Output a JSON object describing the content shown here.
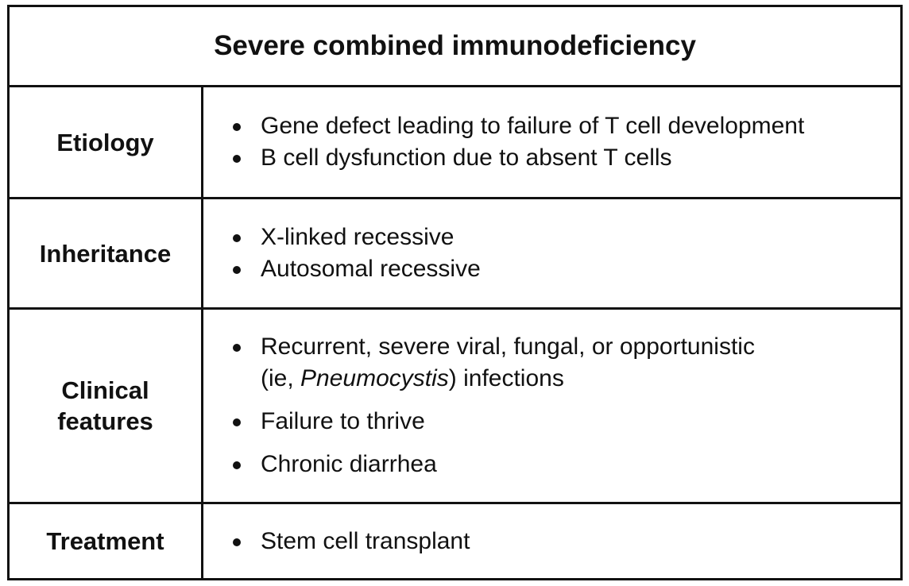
{
  "title": "Severe combined immunodeficiency",
  "rows": {
    "etiology": {
      "label": "Etiology",
      "items": [
        "Gene defect leading to failure of T cell development",
        "B cell dysfunction due to absent T cells"
      ]
    },
    "inheritance": {
      "label": "Inheritance",
      "items": [
        "X-linked recessive",
        "Autosomal recessive"
      ]
    },
    "clinical": {
      "label_line1": "Clinical",
      "label_line2": "features",
      "item1_line1": "Recurrent, severe viral, fungal, or opportunistic",
      "item1_line2_prefix": "(ie, ",
      "item1_line2_italic": "Pneumocystis",
      "item1_line2_suffix": ") infections",
      "items_rest": [
        "Failure to thrive",
        "Chronic diarrhea"
      ]
    },
    "treatment": {
      "label": "Treatment",
      "items": [
        "Stem cell transplant"
      ]
    }
  }
}
